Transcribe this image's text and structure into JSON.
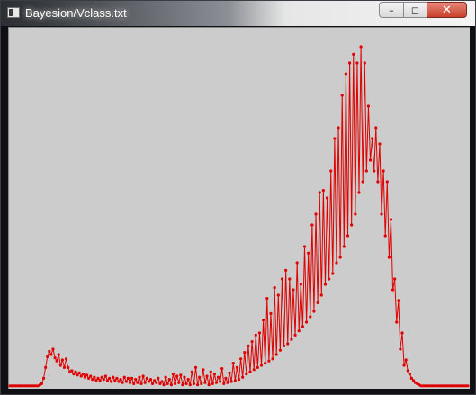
{
  "window": {
    "title": "Bayesion/Vclass.txt",
    "icon": "app-window-icon",
    "controls": {
      "minimize": "–",
      "maximize": "◻",
      "close": "✕"
    }
  },
  "colors": {
    "plot_background": "#cccccc",
    "series": "#e00000"
  },
  "chart_data": {
    "type": "line",
    "title": "",
    "xlabel": "",
    "ylabel": "",
    "markers": true,
    "grid": false,
    "xlim": [
      0,
      250
    ],
    "ylim": [
      0,
      330
    ],
    "series": [
      {
        "values": [
          1,
          1,
          1,
          1,
          1,
          1,
          1,
          1,
          1,
          1,
          1,
          1,
          1,
          1,
          1,
          1,
          2,
          3,
          8,
          18,
          28,
          33,
          30,
          35,
          27,
          24,
          30,
          20,
          25,
          18,
          26,
          18,
          14,
          15,
          12,
          14,
          11,
          13,
          10,
          12,
          9,
          11,
          8,
          10,
          7,
          9,
          6,
          8,
          6,
          9,
          7,
          10,
          6,
          8,
          5,
          9,
          6,
          8,
          5,
          7,
          4,
          9,
          5,
          8,
          4,
          8,
          3,
          7,
          4,
          9,
          3,
          10,
          4,
          8,
          5,
          7,
          3,
          6,
          4,
          8,
          3,
          5,
          2,
          9,
          3,
          7,
          2,
          12,
          3,
          10,
          4,
          11,
          2,
          9,
          3,
          7,
          2,
          14,
          3,
          18,
          2,
          9,
          3,
          16,
          4,
          10,
          2,
          14,
          3,
          12,
          4,
          9,
          5,
          17,
          3,
          8,
          4,
          13,
          5,
          22,
          6,
          18,
          7,
          26,
          9,
          32,
          12,
          38,
          14,
          42,
          16,
          48,
          18,
          50,
          20,
          62,
          22,
          82,
          24,
          68,
          26,
          92,
          30,
          85,
          34,
          100,
          38,
          108,
          40,
          100,
          44,
          90,
          48,
          115,
          52,
          95,
          56,
          130,
          60,
          124,
          65,
          150,
          70,
          160,
          78,
          180,
          85,
          182,
          95,
          175,
          100,
          200,
          105,
          230,
          115,
          240,
          120,
          270,
          130,
          290,
          140,
          300,
          150,
          308,
          160,
          300,
          180,
          315,
          190,
          300,
          200,
          260,
          210,
          230,
          200,
          240,
          190,
          225,
          160,
          200,
          140,
          190,
          120,
          155,
          90,
          100,
          60,
          80,
          35,
          50,
          20,
          25,
          15,
          12,
          8,
          6,
          4,
          3,
          2,
          1,
          1,
          1,
          1,
          1,
          1,
          1,
          1,
          1,
          1,
          1,
          1,
          1,
          1,
          1,
          1,
          1,
          1,
          1,
          1,
          1,
          1,
          1,
          1,
          1,
          1
        ]
      }
    ]
  }
}
